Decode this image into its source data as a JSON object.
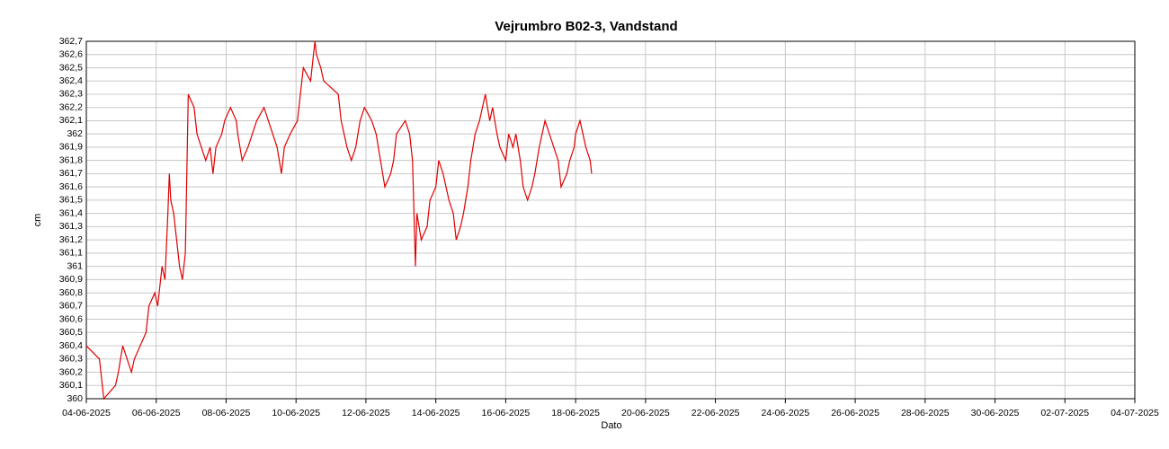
{
  "chart_data": {
    "type": "line",
    "title": "Vejrumbro B02-3, Vandstand",
    "x_label": "Dato",
    "y_label": "cm",
    "grid": true,
    "xlim": [
      "04-06-2025",
      "04-07-2025"
    ],
    "xticks": [
      "04-06-2025",
      "06-06-2025",
      "08-06-2025",
      "10-06-2025",
      "12-06-2025",
      "14-06-2025",
      "16-06-2025",
      "18-06-2025",
      "20-06-2025",
      "22-06-2025",
      "24-06-2025",
      "26-06-2025",
      "28-06-2025",
      "30-06-2025",
      "02-07-2025",
      "04-07-2025"
    ],
    "ylim": [
      360,
      362.7
    ],
    "yticks": [
      360,
      {
        "value": 360.1,
        "label": "360,1"
      },
      {
        "value": 360.2,
        "label": "360,2"
      },
      {
        "value": 360.3,
        "label": "360,3"
      },
      {
        "value": 360.4,
        "label": "360,4"
      },
      {
        "value": 360.5,
        "label": "360,5"
      },
      {
        "value": 360.6,
        "label": "360,6"
      },
      {
        "value": 360.7,
        "label": "360,7"
      },
      {
        "value": 360.8,
        "label": "360,8"
      },
      {
        "value": 360.9,
        "label": "360,9"
      },
      361,
      {
        "value": 361.1,
        "label": "361,1"
      },
      {
        "value": 361.2,
        "label": "361,2"
      },
      {
        "value": 361.3,
        "label": "361,3"
      },
      {
        "value": 361.4,
        "label": "361,4"
      },
      {
        "value": 361.5,
        "label": "361,5"
      },
      {
        "value": 361.6,
        "label": "361,6"
      },
      {
        "value": 361.7,
        "label": "361,7"
      },
      {
        "value": 361.8,
        "label": "361,8"
      },
      {
        "value": 361.9,
        "label": "361,9"
      },
      362,
      {
        "value": 362.1,
        "label": "362,1"
      },
      {
        "value": 362.2,
        "label": "362,2"
      },
      {
        "value": 362.3,
        "label": "362,3"
      },
      {
        "value": 362.4,
        "label": "362,4"
      },
      {
        "value": 362.5,
        "label": "362,5"
      },
      {
        "value": 362.6,
        "label": "362,6"
      },
      {
        "value": 362.7,
        "label": "362,7"
      }
    ],
    "x": [
      "04-06-2025 00:00",
      "04-06-2025 09:00",
      "04-06-2025 12:00",
      "04-06-2025 20:00",
      "04-06-2025 22:00",
      "05-06-2025 01:00",
      "05-06-2025 04:00",
      "05-06-2025 07:00",
      "05-06-2025 09:00",
      "05-06-2025 13:00",
      "05-06-2025 17:00",
      "05-06-2025 19:00",
      "05-06-2025 23:00",
      "06-06-2025 01:00",
      "06-06-2025 04:00",
      "06-06-2025 06:00",
      "06-06-2025 08:00",
      "06-06-2025 09:00",
      "06-06-2025 10:00",
      "06-06-2025 12:00",
      "06-06-2025 14:00",
      "06-06-2025 16:00",
      "06-06-2025 18:00",
      "06-06-2025 20:00",
      "06-06-2025 22:00",
      "07-06-2025 02:00",
      "07-06-2025 04:00",
      "07-06-2025 07:00",
      "07-06-2025 10:00",
      "07-06-2025 13:00",
      "07-06-2025 15:00",
      "07-06-2025 17:00",
      "07-06-2025 21:00",
      "07-06-2025 23:00",
      "08-06-2025 03:00",
      "08-06-2025 07:00",
      "08-06-2025 08:00",
      "08-06-2025 11:00",
      "08-06-2025 15:00",
      "08-06-2025 18:00",
      "08-06-2025 21:00",
      "09-06-2025 02:00",
      "09-06-2025 05:00",
      "09-06-2025 08:00",
      "09-06-2025 11:00",
      "09-06-2025 14:00",
      "09-06-2025 16:00",
      "09-06-2025 20:00",
      "10-06-2025 01:00",
      "10-06-2025 03:00",
      "10-06-2025 05:00",
      "10-06-2025 10:00",
      "10-06-2025 12:00",
      "10-06-2025 13:00",
      "10-06-2025 14:00",
      "10-06-2025 17:00",
      "10-06-2025 19:00",
      "11-06-2025 05:00",
      "11-06-2025 07:00",
      "11-06-2025 11:00",
      "11-06-2025 14:00",
      "11-06-2025 17:00",
      "11-06-2025 20:00",
      "11-06-2025 23:00",
      "12-06-2025 04:00",
      "12-06-2025 07:00",
      "12-06-2025 10:00",
      "12-06-2025 13:00",
      "12-06-2025 17:00",
      "12-06-2025 19:00",
      "12-06-2025 21:00",
      "13-06-2025 03:00",
      "13-06-2025 06:00",
      "13-06-2025 08:00",
      "13-06-2025 09:00",
      "13-06-2025 10:00",
      "13-06-2025 11:00",
      "13-06-2025 14:00",
      "13-06-2025 18:00",
      "13-06-2025 20:00",
      "14-06-2025 00:00",
      "14-06-2025 02:00",
      "14-06-2025 05:00",
      "14-06-2025 07:00",
      "14-06-2025 09:00",
      "14-06-2025 12:00",
      "14-06-2025 14:00",
      "14-06-2025 17:00",
      "14-06-2025 19:00",
      "14-06-2025 22:00",
      "15-06-2025 00:00",
      "15-06-2025 03:00",
      "15-06-2025 06:00",
      "15-06-2025 08:00",
      "15-06-2025 10:00",
      "15-06-2025 13:00",
      "15-06-2025 15:00",
      "15-06-2025 18:00",
      "15-06-2025 20:00",
      "16-06-2025 00:00",
      "16-06-2025 02:00",
      "16-06-2025 05:00",
      "16-06-2025 07:00",
      "16-06-2025 10:00",
      "16-06-2025 12:00",
      "16-06-2025 15:00",
      "16-06-2025 18:00",
      "16-06-2025 20:00",
      "16-06-2025 23:00",
      "17-06-2025 01:00",
      "17-06-2025 03:00",
      "17-06-2025 06:00",
      "17-06-2025 09:00",
      "17-06-2025 12:00",
      "17-06-2025 14:00",
      "17-06-2025 18:00",
      "17-06-2025 20:00",
      "17-06-2025 23:00",
      "18-06-2025 00:00",
      "18-06-2025 03:00",
      "18-06-2025 07:00",
      "18-06-2025 10:00",
      "18-06-2025 11:00"
    ],
    "series": [
      {
        "color": "#e00000",
        "values": [
          360.4,
          360.3,
          360.0,
          360.1,
          360.2,
          360.4,
          360.3,
          360.2,
          360.3,
          360.4,
          360.5,
          360.7,
          360.8,
          360.7,
          361.0,
          360.9,
          361.4,
          361.7,
          361.5,
          361.4,
          361.2,
          361.0,
          360.9,
          361.1,
          362.3,
          362.2,
          362.0,
          361.9,
          361.8,
          361.9,
          361.7,
          361.9,
          362.0,
          362.1,
          362.2,
          362.1,
          362.0,
          361.8,
          361.9,
          362.0,
          362.1,
          362.2,
          362.1,
          362.0,
          361.9,
          361.7,
          361.9,
          362.0,
          362.1,
          362.3,
          362.5,
          362.4,
          362.6,
          362.7,
          362.6,
          362.5,
          362.4,
          362.3,
          362.1,
          361.9,
          361.8,
          361.9,
          362.1,
          362.2,
          362.1,
          362.0,
          361.8,
          361.6,
          361.7,
          361.8,
          362.0,
          362.1,
          362.0,
          361.8,
          361.4,
          361.0,
          361.4,
          361.2,
          361.3,
          361.5,
          361.6,
          361.8,
          361.7,
          361.6,
          361.5,
          361.4,
          361.2,
          361.3,
          361.4,
          361.6,
          361.8,
          362.0,
          362.1,
          362.2,
          362.3,
          362.1,
          362.2,
          362.0,
          361.9,
          361.8,
          362.0,
          361.9,
          362.0,
          361.8,
          361.6,
          361.5,
          361.6,
          361.7,
          361.9,
          362.0,
          362.1,
          362.0,
          361.9,
          361.8,
          361.6,
          361.7,
          361.8,
          361.9,
          362.0,
          362.1,
          361.9,
          361.8,
          361.7
        ]
      }
    ]
  }
}
